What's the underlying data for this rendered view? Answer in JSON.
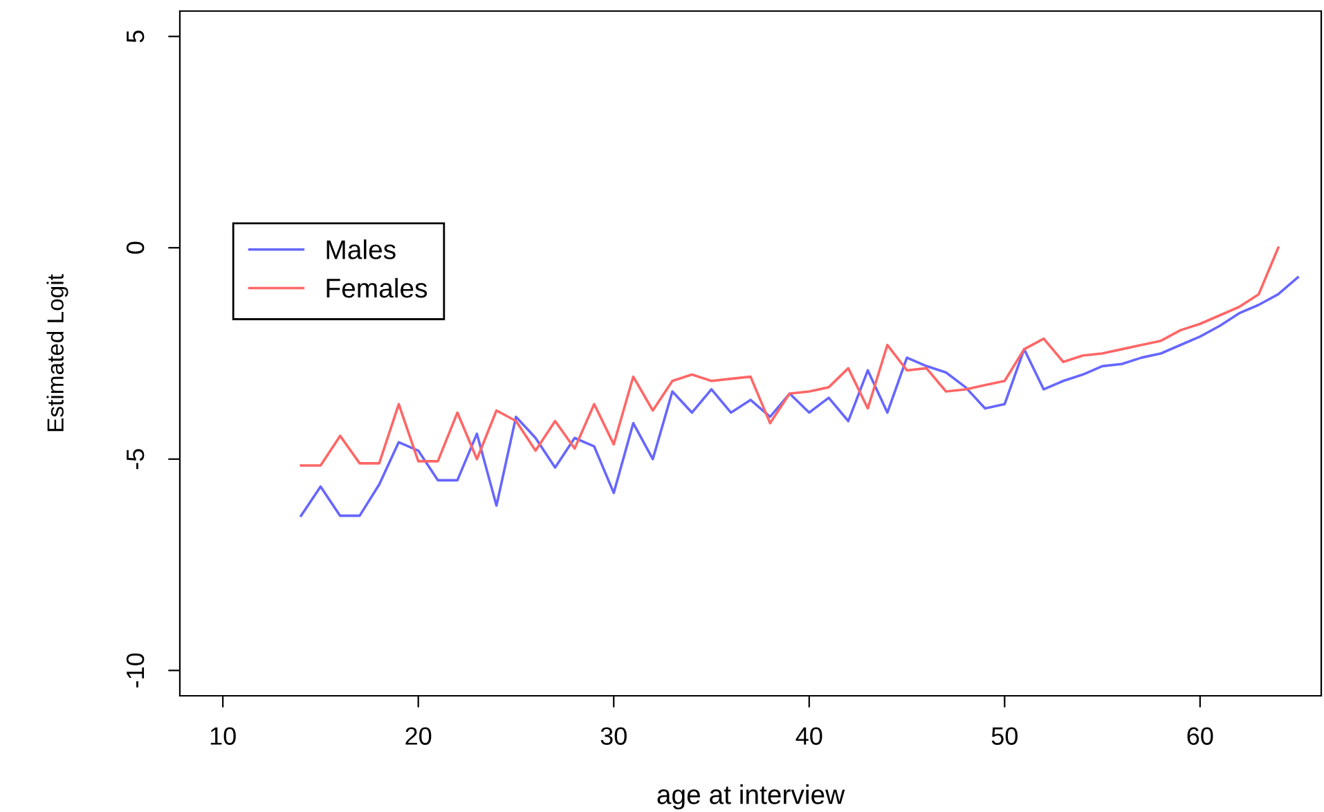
{
  "chart_data": {
    "type": "line",
    "xlabel": "age at interview",
    "ylabel": "Estimated Logit",
    "xlim": [
      7.8,
      66.2
    ],
    "ylim": [
      -10.6,
      5.6
    ],
    "xticks": [
      10,
      20,
      30,
      40,
      50,
      60
    ],
    "yticks": [
      -10,
      -5,
      0,
      5
    ],
    "grid": false,
    "legend": "left",
    "marker": "none",
    "line_style": "solid",
    "series": [
      {
        "name": "Males",
        "color": "#6666ff",
        "x": [
          14,
          15,
          16,
          17,
          18,
          19,
          20,
          21,
          22,
          23,
          24,
          25,
          26,
          27,
          28,
          29,
          30,
          31,
          32,
          33,
          34,
          35,
          36,
          37,
          38,
          39,
          40,
          41,
          42,
          43,
          44,
          45,
          46,
          47,
          48,
          49,
          50,
          51,
          52,
          53,
          54,
          55,
          56,
          57,
          58,
          59,
          60,
          61,
          62,
          63,
          64,
          65
        ],
        "values": [
          -6.34,
          -5.65,
          -6.34,
          -6.34,
          -5.6,
          -4.6,
          -4.8,
          -5.5,
          -5.5,
          -4.4,
          -6.1,
          -4.0,
          -4.5,
          -5.2,
          -4.5,
          -4.7,
          -5.8,
          -4.15,
          -5.0,
          -3.4,
          -3.9,
          -3.35,
          -3.9,
          -3.6,
          -4.0,
          -3.45,
          -3.9,
          -3.55,
          -4.1,
          -2.9,
          -3.9,
          -2.6,
          -2.8,
          -2.95,
          -3.3,
          -3.8,
          -3.7,
          -2.4,
          -3.35,
          -3.15,
          -3.0,
          -2.8,
          -2.75,
          -2.6,
          -2.5,
          -2.3,
          -2.1,
          -1.85,
          -1.55,
          -1.35,
          -1.1,
          -0.7
        ]
      },
      {
        "name": "Females",
        "color": "#ff6666",
        "x": [
          14,
          15,
          16,
          17,
          18,
          19,
          20,
          21,
          22,
          23,
          24,
          25,
          26,
          27,
          28,
          29,
          30,
          31,
          32,
          33,
          34,
          35,
          36,
          37,
          38,
          39,
          40,
          41,
          42,
          43,
          44,
          45,
          46,
          47,
          48,
          49,
          50,
          51,
          52,
          53,
          54,
          55,
          56,
          57,
          58,
          59,
          60,
          61,
          62,
          63,
          64
        ],
        "values": [
          -5.15,
          -5.15,
          -4.45,
          -5.1,
          -5.1,
          -3.7,
          -5.05,
          -5.05,
          -3.9,
          -5.0,
          -3.85,
          -4.1,
          -4.8,
          -4.1,
          -4.75,
          -3.7,
          -4.65,
          -3.05,
          -3.85,
          -3.15,
          -3.0,
          -3.15,
          -3.1,
          -3.05,
          -4.15,
          -3.45,
          -3.4,
          -3.3,
          -2.85,
          -3.8,
          -2.3,
          -2.9,
          -2.85,
          -3.4,
          -3.35,
          -3.25,
          -3.15,
          -2.4,
          -2.15,
          -2.7,
          -2.55,
          -2.5,
          -2.4,
          -2.3,
          -2.2,
          -1.95,
          -1.8,
          -1.6,
          -1.4,
          -1.1,
          0.0
        ]
      }
    ]
  }
}
